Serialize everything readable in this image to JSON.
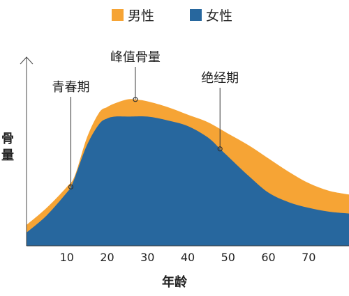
{
  "legend": {
    "male_label": "男性",
    "female_label": "女性"
  },
  "colors": {
    "male": "#F6A435",
    "female": "#27679E"
  },
  "chart_data": {
    "type": "area",
    "xlabel": "年龄",
    "ylabel": "骨量",
    "xlim": [
      0,
      80
    ],
    "xticks": [
      10,
      20,
      30,
      40,
      50,
      60,
      70
    ],
    "series": [
      {
        "name": "男性",
        "x": [
          0,
          5,
          10,
          12,
          15,
          18,
          20,
          22,
          25,
          27,
          30,
          35,
          40,
          45,
          50,
          55,
          60,
          65,
          70,
          75,
          80
        ],
        "y": [
          0.11,
          0.2,
          0.31,
          0.37,
          0.57,
          0.7,
          0.73,
          0.75,
          0.77,
          0.77,
          0.76,
          0.73,
          0.69,
          0.65,
          0.59,
          0.53,
          0.46,
          0.39,
          0.33,
          0.29,
          0.27
        ]
      },
      {
        "name": "女性",
        "x": [
          0,
          5,
          10,
          11,
          12,
          15,
          18,
          20,
          22,
          25,
          30,
          35,
          40,
          45,
          48,
          50,
          55,
          60,
          65,
          70,
          75,
          80
        ],
        "y": [
          0.07,
          0.16,
          0.28,
          0.31,
          0.36,
          0.53,
          0.64,
          0.67,
          0.68,
          0.68,
          0.68,
          0.66,
          0.63,
          0.57,
          0.51,
          0.47,
          0.37,
          0.28,
          0.23,
          0.2,
          0.18,
          0.17
        ]
      }
    ],
    "annotations": [
      {
        "label": "青春期",
        "x": 11,
        "y": 0.31,
        "series": "女性"
      },
      {
        "label": "峰值骨量",
        "x": 27,
        "y": 0.77,
        "series": "男性"
      },
      {
        "label": "绝经期",
        "x": 48,
        "y": 0.51,
        "series": "女性"
      }
    ]
  }
}
